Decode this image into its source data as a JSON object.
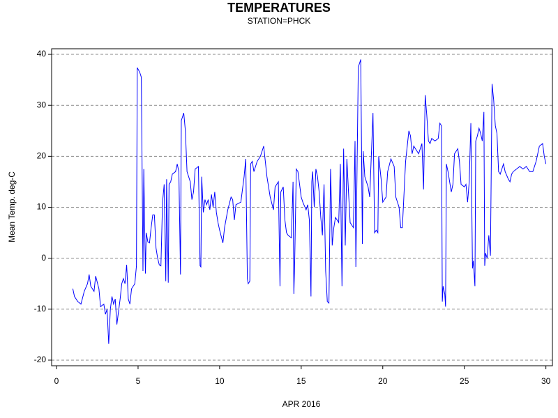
{
  "chart_data": {
    "type": "line",
    "title": "TEMPERATURES",
    "subtitle": "STATION=PHCK",
    "xlabel": "APR 2016",
    "ylabel": "Mean Temp. deg-C",
    "xlim": [
      -0.3,
      30.4
    ],
    "ylim": [
      -21.1,
      41.1
    ],
    "xticks": [
      0,
      5,
      10,
      15,
      20,
      25,
      30
    ],
    "yticks": [
      -20,
      -10,
      0,
      10,
      20,
      30,
      40
    ],
    "grid": true,
    "series": [
      {
        "name": "Mean Temp",
        "color": "#0000ff",
        "x": [
          1.0,
          1.1,
          1.3,
          1.5,
          1.7,
          1.9,
          2.0,
          2.1,
          2.3,
          2.4,
          2.6,
          2.7,
          2.9,
          3.0,
          3.1,
          3.2,
          3.3,
          3.4,
          3.5,
          3.6,
          3.7,
          3.9,
          4.0,
          4.1,
          4.2,
          4.3,
          4.4,
          4.5,
          4.6,
          4.8,
          4.9,
          4.95,
          5.1,
          5.2,
          5.3,
          5.35,
          5.45,
          5.5,
          5.6,
          5.7,
          5.8,
          5.9,
          6.0,
          6.1,
          6.2,
          6.3,
          6.4,
          6.5,
          6.6,
          6.7,
          6.75,
          6.85,
          6.9,
          7.0,
          7.1,
          7.3,
          7.4,
          7.5,
          7.6,
          7.65,
          7.7,
          7.8,
          7.9,
          8.0,
          8.2,
          8.3,
          8.4,
          8.5,
          8.7,
          8.8,
          8.85,
          8.9,
          9.0,
          9.1,
          9.2,
          9.3,
          9.4,
          9.5,
          9.6,
          9.7,
          9.8,
          9.9,
          10.0,
          10.2,
          10.3,
          10.5,
          10.7,
          10.8,
          10.9,
          11.0,
          11.3,
          11.5,
          11.6,
          11.7,
          11.75,
          11.85,
          11.9,
          12.0,
          12.1,
          12.3,
          12.5,
          12.7,
          12.8,
          12.9,
          13.1,
          13.3,
          13.4,
          13.6,
          13.7,
          13.75,
          13.9,
          14.0,
          14.1,
          14.2,
          14.4,
          14.5,
          14.55,
          14.6,
          14.7,
          14.8,
          15.0,
          15.1,
          15.3,
          15.4,
          15.5,
          15.6,
          15.65,
          15.7,
          15.8,
          15.9,
          16.0,
          16.1,
          16.2,
          16.3,
          16.4,
          16.5,
          16.6,
          16.7,
          16.8,
          16.85,
          16.9,
          17.0,
          17.1,
          17.3,
          17.4,
          17.5,
          17.6,
          17.7,
          17.8,
          17.9,
          18.0,
          18.2,
          18.3,
          18.35,
          18.5,
          18.6,
          18.65,
          18.75,
          18.8,
          18.9,
          19.1,
          19.2,
          19.4,
          19.5,
          19.6,
          19.7,
          19.75,
          19.9,
          20.0,
          20.2,
          20.3,
          20.5,
          20.7,
          20.8,
          21.0,
          21.1,
          21.2,
          21.4,
          21.6,
          21.7,
          21.8,
          21.9,
          22.1,
          22.2,
          22.4,
          22.5,
          22.6,
          22.7,
          22.8,
          22.9,
          23.0,
          23.2,
          23.4,
          23.5,
          23.6,
          23.65,
          23.7,
          23.8,
          23.85,
          23.9,
          24.0,
          24.2,
          24.3,
          24.4,
          24.6,
          24.7,
          24.8,
          25.0,
          25.1,
          25.2,
          25.3,
          25.4,
          25.5,
          25.55,
          25.65,
          25.7,
          25.8,
          25.9,
          26.0,
          26.1,
          26.2,
          26.25,
          26.3,
          26.4,
          26.5,
          26.6,
          26.7,
          26.8,
          26.9,
          27.0,
          27.1,
          27.2,
          27.3,
          27.4,
          27.5,
          27.7,
          27.8,
          27.9,
          28.0,
          28.2,
          28.4,
          28.6,
          28.8,
          29.0,
          29.2,
          29.4,
          29.6,
          29.8,
          29.9,
          30.0
        ],
        "values": [
          -6,
          -7.5,
          -8.5,
          -9,
          -6.5,
          -5,
          -3.2,
          -5.5,
          -6.5,
          -3.5,
          -6,
          -9.5,
          -9,
          -11,
          -10,
          -16.8,
          -10,
          -7.5,
          -9,
          -8,
          -13,
          -8,
          -5,
          -4,
          -5,
          -1.3,
          -8,
          -9,
          -6,
          -5,
          -1.5,
          37.4,
          36.5,
          35.5,
          -2.5,
          17.5,
          -3,
          5,
          3.2,
          3,
          6,
          8.5,
          8.5,
          2,
          0,
          -1.3,
          -1.5,
          11,
          14.5,
          -4.5,
          15.5,
          -4.8,
          14.5,
          15,
          16.5,
          17,
          18.5,
          17,
          -3.2,
          27,
          27.5,
          28.5,
          25,
          17,
          15,
          11.5,
          13,
          17.5,
          18,
          -1.5,
          -1.7,
          16,
          9,
          11.5,
          10.5,
          11.5,
          9.5,
          12.5,
          10,
          13,
          9,
          7,
          5.5,
          3,
          6,
          9.5,
          12,
          11.5,
          7.5,
          10.5,
          11,
          16,
          19.5,
          -4,
          -5,
          -4.5,
          18.5,
          19,
          17,
          19,
          20,
          22,
          19,
          16,
          12,
          9.5,
          14,
          15,
          -5.5,
          13,
          14,
          7.5,
          5,
          4.5,
          4,
          15,
          -7,
          -1,
          17.5,
          17,
          12,
          11,
          9.5,
          10.5,
          7.5,
          -7.5,
          15,
          17,
          10,
          17.5,
          16,
          13,
          8,
          4.5,
          14.5,
          -2.5,
          -8.5,
          -8.8,
          17.5,
          11,
          2.5,
          6,
          8,
          7,
          18.5,
          -5.5,
          21.5,
          2.5,
          19.5,
          13,
          7,
          6,
          23,
          -1.7,
          37.5,
          38.5,
          39,
          2.8,
          21,
          16,
          14,
          12,
          28.5,
          5,
          5.5,
          5,
          20,
          15.5,
          11,
          12,
          17,
          19.5,
          18,
          12,
          10,
          6,
          6,
          19,
          25,
          24,
          20.5,
          22,
          21,
          20.5,
          22.5,
          13.5,
          32,
          28,
          23,
          22.5,
          23.5,
          23,
          23.5,
          26.5,
          26,
          -8.5,
          -5.5,
          -7,
          -9.5,
          18.5,
          17,
          13,
          14.5,
          20.5,
          21.5,
          19,
          14.5,
          14,
          14.5,
          11,
          15,
          26.5,
          -2,
          -0.5,
          -5.5,
          23,
          24,
          25.5,
          24.5,
          23,
          28.7,
          -1.5,
          1,
          0,
          4.5,
          0.5,
          34.2,
          31,
          26,
          24.5,
          17,
          16.5,
          17.5,
          18.5,
          17,
          15.5,
          15,
          16.5,
          17,
          17.5,
          18,
          17.5,
          18,
          17,
          17,
          19,
          22,
          22.5,
          20,
          18.5
        ]
      }
    ]
  }
}
